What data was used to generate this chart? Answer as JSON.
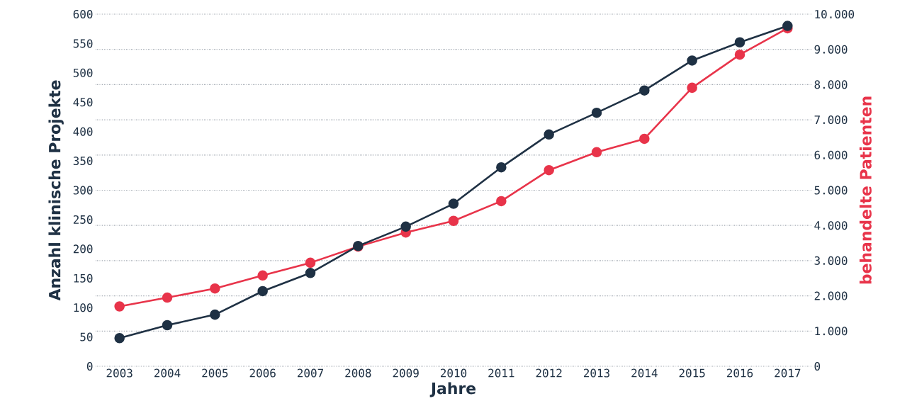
{
  "chart_data": {
    "type": "line",
    "xlabel": "Jahre",
    "ylabel": "Anzahl klinische Projekte",
    "y2label": "behandelte Patienten",
    "categories": [
      "2003",
      "2004",
      "2005",
      "2006",
      "2007",
      "2008",
      "2009",
      "2010",
      "2011",
      "2012",
      "2013",
      "2014",
      "2015",
      "2016",
      "2017"
    ],
    "series": [
      {
        "color": "#1f3144",
        "values": [
          48,
          70,
          88,
          128,
          159,
          205,
          238,
          277,
          339,
          395,
          432,
          470,
          521,
          552,
          580
        ]
      },
      {
        "color": "#e8344a",
        "axis": "y2",
        "values": [
          1700,
          1950,
          2210,
          2580,
          2940,
          3400,
          3800,
          4130,
          4690,
          5570,
          6080,
          6460,
          7910,
          8850,
          9600
        ]
      }
    ],
    "ylim": [
      0,
      600
    ],
    "yticks": [
      0,
      50,
      100,
      150,
      200,
      250,
      300,
      350,
      400,
      450,
      500,
      550,
      600
    ],
    "y2lim": [
      0,
      10000
    ],
    "y2ticks": [
      0,
      {
        "value": 1000,
        "label": "1.000"
      },
      {
        "value": 2000,
        "label": "2.000"
      },
      {
        "value": 3000,
        "label": "3.000"
      },
      {
        "value": 4000,
        "label": "4.000"
      },
      {
        "value": 5000,
        "label": "5.000"
      },
      {
        "value": 6000,
        "label": "6.000"
      },
      {
        "value": 7000,
        "label": "7.000"
      },
      {
        "value": 8000,
        "label": "8.000"
      },
      {
        "value": 9000,
        "label": "9.000"
      },
      {
        "value": 10000,
        "label": "10.000"
      }
    ],
    "grid": "y2",
    "marker": "circle",
    "line_style": "solid"
  }
}
